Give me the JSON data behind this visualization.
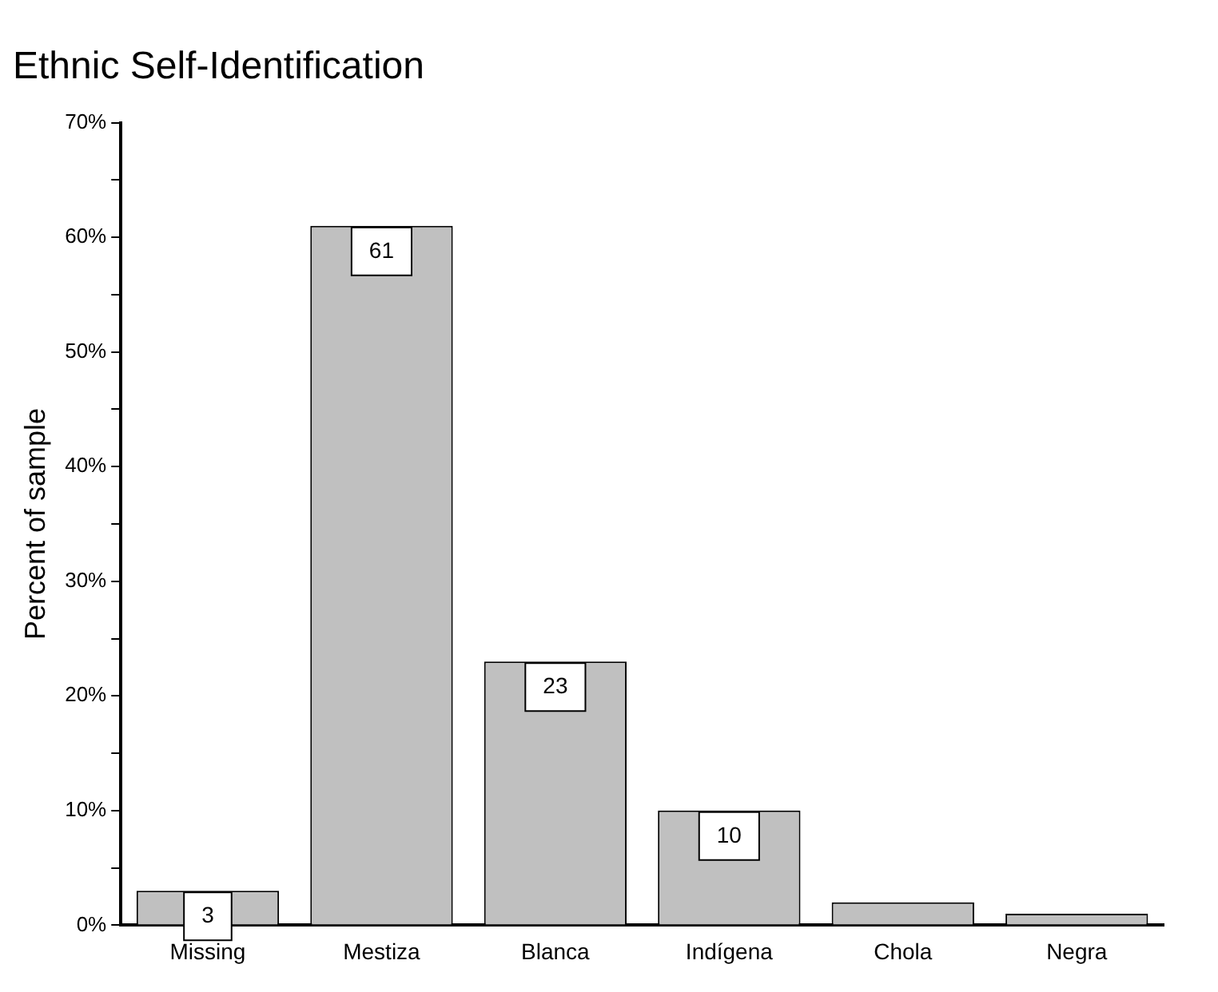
{
  "chart_data": {
    "type": "bar",
    "title": "Ethnic Self-Identification",
    "ylabel": "Percent of sample",
    "categories": [
      "Missing",
      "Mestiza",
      "Blanca",
      "Indígena",
      "Chola",
      "Negra"
    ],
    "values": [
      3,
      61,
      23,
      10,
      2,
      1
    ],
    "value_labels": [
      "3",
      "61",
      "23",
      "10",
      null,
      null
    ],
    "color": "#c0c0c0",
    "ylim": [
      0,
      70
    ],
    "yticks": [
      {
        "value": 0,
        "label": "0%"
      },
      {
        "value": 5,
        "label": null
      },
      {
        "value": 10,
        "label": "10%"
      },
      {
        "value": 15,
        "label": null
      },
      {
        "value": 20,
        "label": "20%"
      },
      {
        "value": 25,
        "label": null
      },
      {
        "value": 30,
        "label": "30%"
      },
      {
        "value": 35,
        "label": null
      },
      {
        "value": 40,
        "label": "40%"
      },
      {
        "value": 45,
        "label": null
      },
      {
        "value": 50,
        "label": "50%"
      },
      {
        "value": 55,
        "label": null
      },
      {
        "value": 60,
        "label": "60%"
      },
      {
        "value": 65,
        "label": null
      },
      {
        "value": 70,
        "label": "70%"
      }
    ],
    "grid": false,
    "legend": false
  }
}
